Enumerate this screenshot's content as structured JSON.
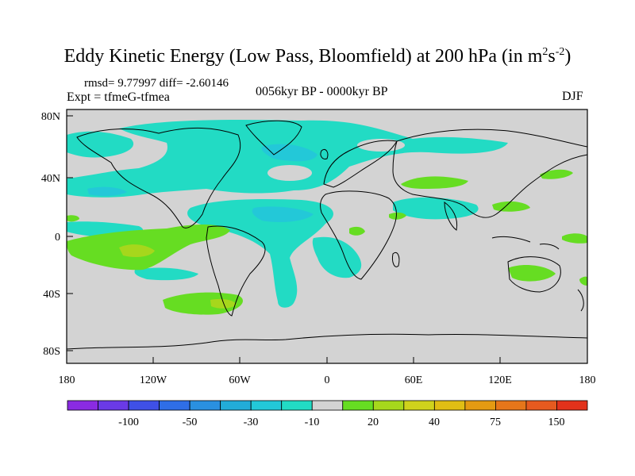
{
  "title": {
    "main": "Eddy Kinetic Energy (Low Pass, Bloomfield) at 200 hPa (in m",
    "sup1": "2",
    "mid": "s",
    "sup2": "-2",
    "end": ")"
  },
  "stats": {
    "rmsd_text": "rmsd= 9.77997 diff= -2.60146"
  },
  "experiment": "Expt = tfmeG-tfmea",
  "period": "0056kyr BP - 0000kyr BP",
  "season": "DJF",
  "axes": {
    "lat_labels": [
      "80N",
      "40N",
      "0",
      "40S",
      "80S"
    ],
    "lon_labels": [
      "180",
      "120W",
      "60W",
      "0",
      "60E",
      "120E",
      "180"
    ]
  },
  "colors": {
    "background_field": "#d3d3d3",
    "land_outline": "#000000",
    "pos_10_20": "#66dd22",
    "pos_20_30": "#a6d71c",
    "neg_10_20": "#22dbc4",
    "neg_20_30": "#23c8d8"
  },
  "colorbar": {
    "colors": [
      "#8a2be2",
      "#6a3ae6",
      "#3f50e6",
      "#2f6ee6",
      "#2a90e0",
      "#22acd8",
      "#23c8d8",
      "#22dbc4",
      "#d3d3d3",
      "#66dd22",
      "#a6d71c",
      "#cfd21c",
      "#e0be14",
      "#e49a12",
      "#e6761a",
      "#e65a1f",
      "#e2321b"
    ],
    "labels": [
      "-100",
      "-50",
      "-30",
      "-10",
      "20",
      "40",
      "75",
      "150"
    ]
  }
}
